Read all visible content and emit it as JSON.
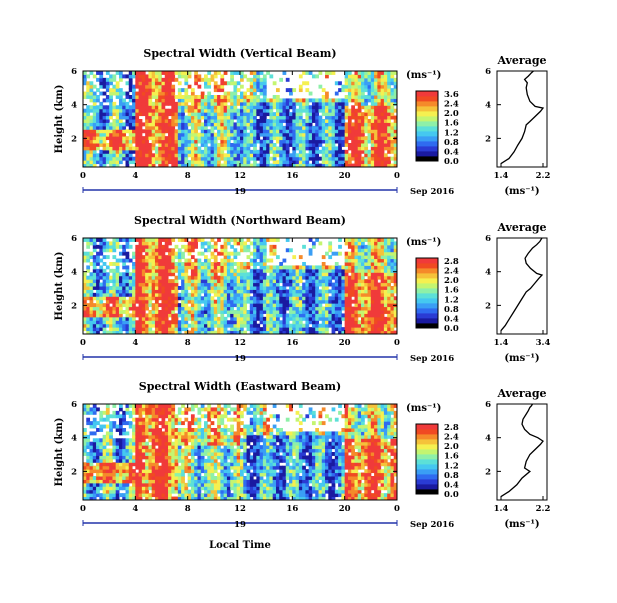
{
  "colors": {
    "scale": [
      "#000000",
      "#1a1aa0",
      "#2a3bd4",
      "#2f6bf0",
      "#3a9ef5",
      "#45c8f0",
      "#5ce0d8",
      "#8ef0a8",
      "#c4f570",
      "#f5f050",
      "#f5c23a",
      "#f58a2a",
      "#f04a22",
      "#f03a3a"
    ],
    "missing": "#ffffff",
    "timeline": "#2233aa"
  },
  "figure": {
    "date_label": "Sep 2016",
    "day_label": "19",
    "xlabel": "Local Time",
    "ylabel": "Height (km)",
    "unit": "(ms⁻¹)"
  },
  "panels": [
    {
      "title": "Spectral Width (Vertical Beam)",
      "avg_title": "Average",
      "avg_xlabel": "(ms⁻¹)",
      "colorbar_ticks": [
        "3.6",
        "2.4",
        "2.0",
        "1.6",
        "1.2",
        "0.8",
        "0.4",
        "0.0"
      ],
      "x_ticks": [
        "0",
        "4",
        "8",
        "12",
        "16",
        "20",
        "0"
      ],
      "y_ticks": [
        "6",
        "4",
        "2"
      ],
      "avg_x_ticks": [
        "1.4",
        "2.2"
      ],
      "avg_y_ticks": [
        "6",
        "4",
        "2"
      ]
    },
    {
      "title": "Spectral Width (Northward Beam)",
      "avg_title": "Average",
      "avg_xlabel": "(ms⁻¹)",
      "colorbar_ticks": [
        "2.8",
        "2.4",
        "2.0",
        "1.6",
        "1.2",
        "0.8",
        "0.4",
        "0.0"
      ],
      "x_ticks": [
        "0",
        "4",
        "8",
        "12",
        "16",
        "20",
        "0"
      ],
      "y_ticks": [
        "6",
        "4",
        "2"
      ],
      "avg_x_ticks": [
        "1.4",
        "3.4"
      ],
      "avg_y_ticks": [
        "6",
        "4",
        "2"
      ]
    },
    {
      "title": "Spectral Width (Eastward Beam)",
      "avg_title": "Average",
      "avg_xlabel": "(ms⁻¹)",
      "colorbar_ticks": [
        "2.8",
        "2.4",
        "2.0",
        "1.6",
        "1.2",
        "0.8",
        "0.4",
        "0.0"
      ],
      "x_ticks": [
        "0",
        "4",
        "8",
        "12",
        "16",
        "20",
        "0"
      ],
      "y_ticks": [
        "6",
        "4",
        "2"
      ],
      "avg_x_ticks": [
        "1.4",
        "2.2"
      ],
      "avg_y_ticks": [
        "6",
        "4",
        "2"
      ]
    }
  ],
  "chart_data": [
    {
      "type": "heatmap",
      "title": "Spectral Width (Vertical Beam)",
      "xlabel": "",
      "ylabel": "Height (km)",
      "xlim": [
        0,
        24
      ],
      "ylim": [
        0.3,
        6
      ],
      "colorbar_range": [
        0.0,
        3.6
      ],
      "regimes": [
        {
          "time": [
            0,
            4
          ],
          "level": "low-moderate, high near 2 km"
        },
        {
          "time": [
            4,
            7
          ],
          "level": "high"
        },
        {
          "time": [
            7,
            12
          ],
          "level": "moderate"
        },
        {
          "time": [
            12,
            20
          ],
          "level": "low-moderate"
        },
        {
          "time": [
            20,
            24
          ],
          "level": "high below 4 km"
        }
      ]
    },
    {
      "type": "line",
      "title": "Average",
      "xlabel": "(ms⁻¹)",
      "xlim": [
        1.4,
        2.2
      ],
      "ylim": [
        0.3,
        6
      ],
      "x": [
        1.4,
        1.55,
        1.65,
        1.72,
        1.8,
        1.85,
        1.88,
        1.95,
        2.05,
        2.15,
        2.2,
        2.05,
        1.95,
        1.9,
        1.88,
        1.9,
        1.85,
        1.92,
        1.95,
        1.98,
        2.02
      ],
      "y": [
        0.5,
        0.8,
        1.2,
        1.6,
        2.0,
        2.4,
        2.8,
        3.0,
        3.3,
        3.6,
        3.8,
        3.9,
        4.2,
        4.6,
        5.0,
        5.3,
        5.5,
        5.7,
        5.8,
        5.9,
        6.0
      ]
    },
    {
      "type": "heatmap",
      "title": "Spectral Width (Northward Beam)",
      "xlabel": "",
      "ylabel": "Height (km)",
      "xlim": [
        0,
        24
      ],
      "ylim": [
        0.3,
        6
      ],
      "colorbar_range": [
        0.0,
        2.8
      ],
      "regimes": [
        {
          "time": [
            0,
            4
          ],
          "level": "low-moderate, high patches near 2 km"
        },
        {
          "time": [
            4,
            7
          ],
          "level": "high"
        },
        {
          "time": [
            7,
            12
          ],
          "level": "moderate"
        },
        {
          "time": [
            12,
            20
          ],
          "level": "low-moderate"
        },
        {
          "time": [
            20,
            24
          ],
          "level": "high below 4 km"
        }
      ]
    },
    {
      "type": "line",
      "title": "Average",
      "xlabel": "(ms⁻¹)",
      "xlim": [
        1.4,
        3.4
      ],
      "ylim": [
        0.3,
        6
      ],
      "x": [
        1.4,
        1.6,
        1.8,
        2.0,
        2.2,
        2.4,
        2.6,
        2.8,
        3.0,
        3.2,
        3.35,
        3.1,
        2.8,
        2.6,
        2.55,
        2.7,
        2.9,
        3.1,
        3.25,
        3.3,
        3.35
      ],
      "y": [
        0.5,
        0.8,
        1.2,
        1.6,
        2.0,
        2.4,
        2.8,
        3.0,
        3.3,
        3.6,
        3.8,
        3.9,
        4.2,
        4.5,
        4.8,
        5.1,
        5.4,
        5.6,
        5.8,
        5.9,
        6.0
      ]
    },
    {
      "type": "heatmap",
      "title": "Spectral Width (Eastward Beam)",
      "xlabel": "Local Time",
      "ylabel": "Height (km)",
      "xlim": [
        0,
        24
      ],
      "ylim": [
        0.3,
        6
      ],
      "colorbar_range": [
        0.0,
        2.8
      ],
      "regimes": [
        {
          "time": [
            0,
            4
          ],
          "level": "low-moderate, high near 1.5 km"
        },
        {
          "time": [
            4,
            7
          ],
          "level": "high"
        },
        {
          "time": [
            7,
            12
          ],
          "level": "moderate"
        },
        {
          "time": [
            12,
            20
          ],
          "level": "low-moderate"
        },
        {
          "time": [
            20,
            24
          ],
          "level": "high below 4 km"
        }
      ]
    },
    {
      "type": "line",
      "title": "Average",
      "xlabel": "(ms⁻¹)",
      "xlim": [
        1.4,
        2.2
      ],
      "ylim": [
        0.3,
        6
      ],
      "x": [
        1.4,
        1.55,
        1.7,
        1.8,
        1.95,
        1.85,
        1.88,
        1.95,
        2.05,
        2.15,
        2.2,
        2.1,
        1.95,
        1.85,
        1.8,
        1.82,
        1.88,
        1.92,
        1.95,
        1.98,
        2.0
      ],
      "y": [
        0.5,
        0.8,
        1.2,
        1.6,
        2.0,
        2.2,
        2.6,
        3.0,
        3.3,
        3.6,
        3.8,
        4.0,
        4.2,
        4.5,
        4.8,
        5.1,
        5.4,
        5.6,
        5.8,
        5.9,
        6.0
      ]
    }
  ]
}
